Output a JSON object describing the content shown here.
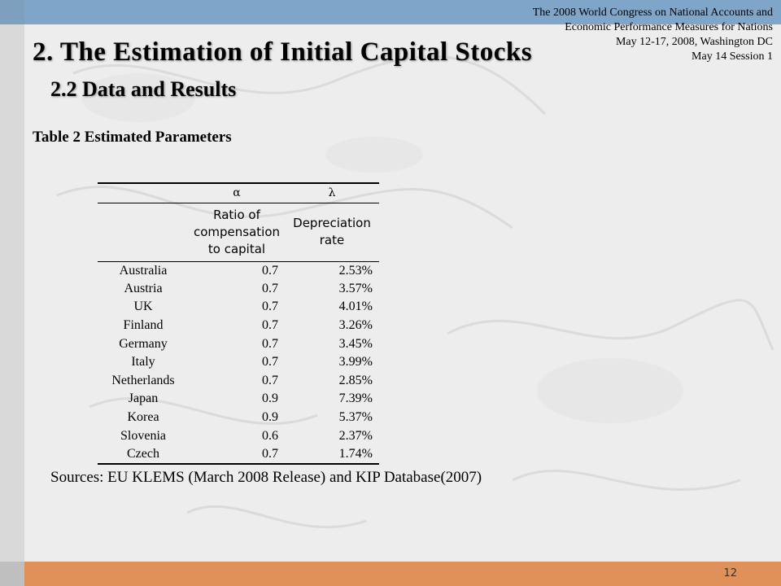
{
  "header": {
    "conference_lines": [
      "The 2008 World Congress on National Accounts and",
      "Economic Performance Measures for Nations",
      "May 12-17, 2008, Washington DC",
      "May 14 Session 1"
    ]
  },
  "title": "2. The Estimation of Initial Capital Stocks",
  "subtitle": "2.2 Data and Results",
  "table_caption": "Table 2 Estimated Parameters",
  "table": {
    "symbols": [
      "",
      "α",
      "λ"
    ],
    "descriptions": [
      "",
      "Ratio of compensation to capital",
      "Depreciation rate"
    ],
    "rows": [
      {
        "country": "Australia",
        "ratio": "0.7",
        "rate": "2.53%"
      },
      {
        "country": "Austria",
        "ratio": "0.7",
        "rate": "3.57%"
      },
      {
        "country": "UK",
        "ratio": "0.7",
        "rate": "4.01%"
      },
      {
        "country": "Finland",
        "ratio": "0.7",
        "rate": "3.26%"
      },
      {
        "country": "Germany",
        "ratio": "0.7",
        "rate": "3.45%"
      },
      {
        "country": "Italy",
        "ratio": "0.7",
        "rate": "3.99%"
      },
      {
        "country": "Netherlands",
        "ratio": "0.7",
        "rate": "2.85%"
      },
      {
        "country": "Japan",
        "ratio": "0.9",
        "rate": "7.39%"
      },
      {
        "country": "Korea",
        "ratio": "0.9",
        "rate": "5.37%"
      },
      {
        "country": "Slovenia",
        "ratio": "0.6",
        "rate": "2.37%"
      },
      {
        "country": "Czech",
        "ratio": "0.7",
        "rate": "1.74%"
      }
    ]
  },
  "sources": "Sources: EU KLEMS (March 2008 Release) and KIP Database(2007)",
  "page_number": "12",
  "colors": {
    "top_bar": "#7fa6c8",
    "bottom_bar": "#e0915a",
    "background": "#ededed"
  }
}
